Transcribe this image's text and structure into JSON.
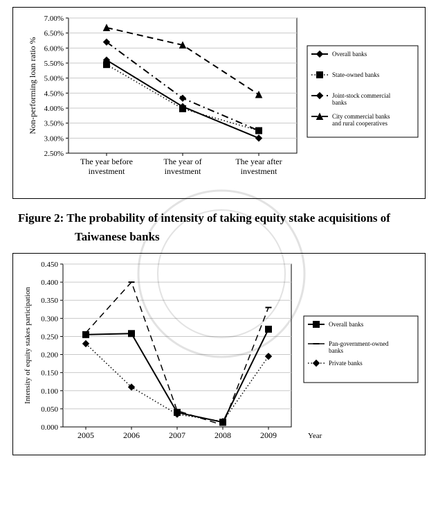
{
  "chart1": {
    "type": "line",
    "background_color": "#ffffff",
    "border_color": "#000000",
    "ylabel": "Non-performing loan ratio %",
    "label_fontsize": 12,
    "xlabels": [
      "The year before\ninvestment",
      "The year of\ninvestment",
      "The year after\ninvestment"
    ],
    "ylim": [
      2.5,
      7.0
    ],
    "ytick_step": 0.5,
    "yticks": [
      2.5,
      3.0,
      3.5,
      4.0,
      4.5,
      5.0,
      5.5,
      6.0,
      6.5,
      7.0
    ],
    "ytick_labels": [
      "2.50%",
      "3.00%",
      "3.50%",
      "4.00%",
      "4.50%",
      "5.00%",
      "5.50%",
      "6.00%",
      "6.50%",
      "7.00%"
    ],
    "tick_fontsize": 11,
    "grid_color": "#c9c9c9",
    "series": [
      {
        "name": "Overall banks",
        "values": [
          5.6,
          4.05,
          3.0
        ],
        "color": "#000000",
        "dash": "none",
        "marker": "diamond",
        "line_width": 2
      },
      {
        "name": "State-owned banks",
        "values": [
          5.45,
          3.98,
          3.25
        ],
        "color": "#000000",
        "dash": "dot",
        "marker": "square",
        "line_width": 1.5
      },
      {
        "name": "Joint-stock commercial banks",
        "values": [
          6.2,
          4.33,
          3.25
        ],
        "color": "#000000",
        "dash": "dashdot",
        "marker": "diamond",
        "line_width": 2
      },
      {
        "name": "City commercial banks and rural cooperatives",
        "values": [
          6.68,
          6.1,
          4.45
        ],
        "color": "#000000",
        "dash": "dash",
        "marker": "triangle",
        "line_width": 2
      }
    ],
    "legend": {
      "position": "right",
      "fontsize": 9,
      "items": [
        "Overall banks",
        "State-owned banks",
        "Joint-stock commercial banks",
        "City commercial banks and rural cooperatives"
      ]
    }
  },
  "caption": {
    "prefix": "Figure 2:",
    "line1": "The probability of intensity of taking equity stake acquisitions of",
    "line2": "Taiwanese banks"
  },
  "chart2": {
    "type": "line",
    "background_color": "#ffffff",
    "border_color": "#000000",
    "ylabel": "Intensity of equity stakes participation",
    "xlabel": "Year",
    "label_fontsize": 11,
    "xlabels": [
      "2005",
      "2006",
      "2007",
      "2008",
      "2009"
    ],
    "ylim": [
      0.0,
      0.45
    ],
    "ytick_step": 0.05,
    "yticks": [
      0.0,
      0.05,
      0.1,
      0.15,
      0.2,
      0.25,
      0.3,
      0.35,
      0.4,
      0.45
    ],
    "ytick_labels": [
      "0.000",
      "0.050",
      "0.100",
      "0.150",
      "0.200",
      "0.250",
      "0.300",
      "0.350",
      "0.400",
      "0.450"
    ],
    "tick_fontsize": 11,
    "grid_color": "#c9c9c9",
    "series": [
      {
        "name": "Overall banks",
        "values": [
          0.255,
          0.258,
          0.04,
          0.013,
          0.27
        ],
        "color": "#000000",
        "dash": "none",
        "marker": "square",
        "line_width": 2
      },
      {
        "name": "Pan-government-owned banks",
        "values": [
          0.26,
          0.4,
          0.045,
          0.005,
          0.33
        ],
        "color": "#000000",
        "dash": "dash",
        "marker": "dash",
        "line_width": 1.5
      },
      {
        "name": "Private banks",
        "values": [
          0.23,
          0.11,
          0.035,
          0.015,
          0.195
        ],
        "color": "#000000",
        "dash": "dot",
        "marker": "diamond",
        "line_width": 1.5
      }
    ],
    "legend": {
      "position": "right",
      "fontsize": 9,
      "items": [
        "Overall banks",
        "Pan-government-owned banks",
        "Private banks"
      ]
    }
  }
}
